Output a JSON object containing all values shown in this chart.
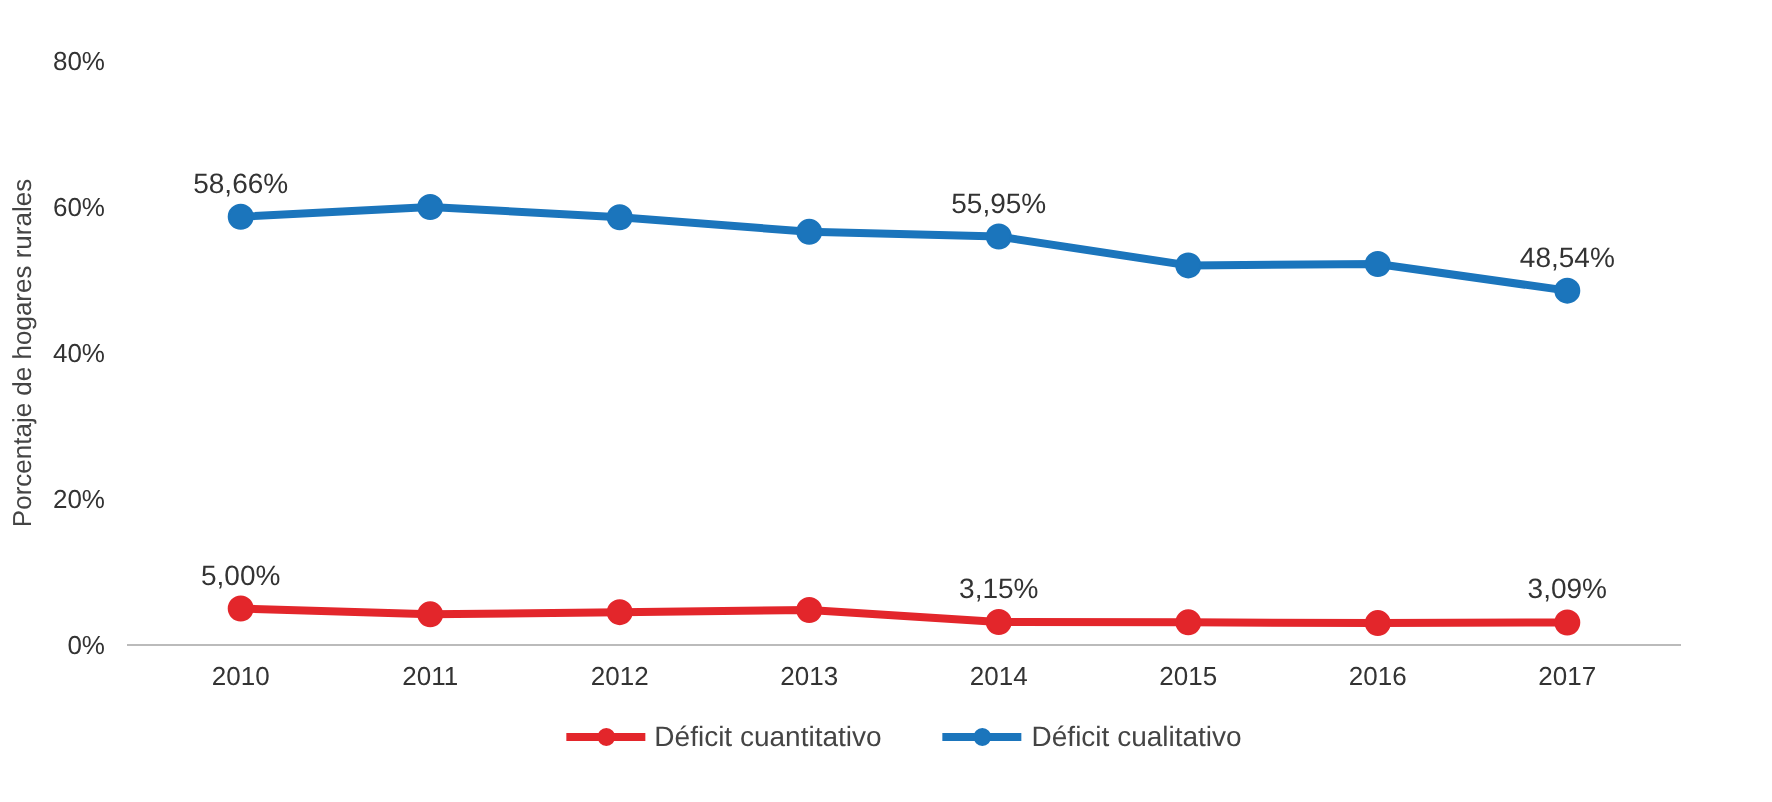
{
  "chart_data": {
    "type": "line",
    "ylabel": "Porcentaje de hogares rurales",
    "categories": [
      "2010",
      "2011",
      "2012",
      "2013",
      "2014",
      "2015",
      "2016",
      "2017"
    ],
    "series": [
      {
        "name": "Déficit cuantitativo",
        "color": "#e3262b",
        "values": [
          5.0,
          4.2,
          4.5,
          4.8,
          3.15,
          3.1,
          3.0,
          3.09
        ],
        "value_labels": [
          "5,00%",
          null,
          null,
          null,
          "3,15%",
          null,
          null,
          "3,09%"
        ]
      },
      {
        "name": "Déficit cualitativo",
        "color": "#1b75bc",
        "values": [
          58.66,
          60.0,
          58.6,
          56.6,
          55.95,
          52.0,
          52.2,
          48.54
        ],
        "value_labels": [
          "58,66%",
          null,
          null,
          null,
          "55,95%",
          null,
          null,
          "48,54%"
        ]
      }
    ],
    "ylim": [
      0,
      80
    ],
    "yticks": [
      {
        "value": 0,
        "label": "0%"
      },
      {
        "value": 20,
        "label": "20%"
      },
      {
        "value": 40,
        "label": "40%"
      },
      {
        "value": 60,
        "label": "60%"
      },
      {
        "value": 80,
        "label": "80%"
      }
    ],
    "grid": false,
    "legend": "bottom",
    "marker": "circle",
    "line_style": "solid"
  }
}
